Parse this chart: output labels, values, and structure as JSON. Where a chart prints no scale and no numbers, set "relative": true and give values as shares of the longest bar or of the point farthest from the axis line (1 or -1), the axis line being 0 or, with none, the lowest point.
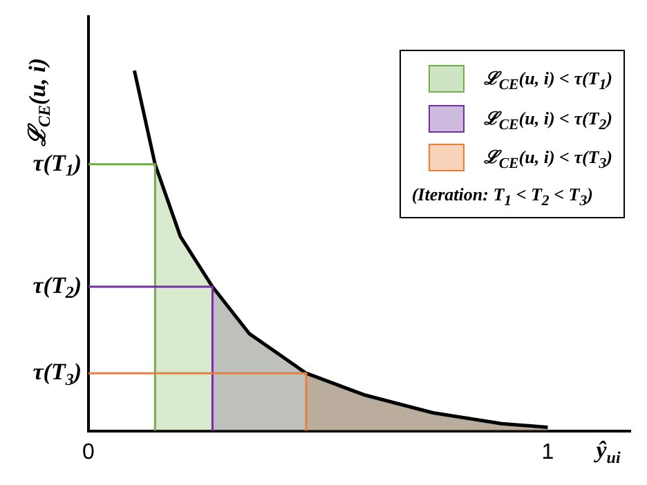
{
  "chart_data": {
    "type": "line",
    "relative": true,
    "xlabel": "ŷ$_{ui}$",
    "ylabel": "ℒ$_{CE}$(u, i)",
    "xlim": [
      0,
      1.18
    ],
    "xticks": [
      0,
      1
    ],
    "legend": "top right",
    "grid": false,
    "series": [
      {
        "type": "line",
        "color": "#000000",
        "x": [
          0.1,
          0.145,
          0.2,
          0.27,
          0.35,
          0.474,
          0.6,
          0.75,
          0.9,
          1.0
        ],
        "values": [
          1.0,
          0.74,
          0.54,
          0.4,
          0.27,
          0.16,
          0.1,
          0.05,
          0.02,
          0.01
        ]
      },
      {
        "type": "area",
        "name": "ℒ$_{CE}$(u, i) < τ(T$_{1}$)",
        "color": "#70ad47",
        "x": [
          0.145,
          0.2,
          0.27,
          0.35,
          0.474,
          0.6,
          0.75,
          0.9,
          1.0
        ],
        "values": [
          0.74,
          0.54,
          0.4,
          0.27,
          0.16,
          0.1,
          0.05,
          0.02,
          0.01
        ]
      },
      {
        "type": "area",
        "name": "ℒ$_{CE}$(u, i) < τ(T$_{2}$)",
        "color": "#7030a0",
        "x": [
          0.27,
          0.35,
          0.474,
          0.6,
          0.75,
          0.9,
          1.0
        ],
        "values": [
          0.4,
          0.27,
          0.16,
          0.1,
          0.05,
          0.02,
          0.01
        ]
      },
      {
        "type": "area",
        "name": "ℒ$_{CE}$(u, i) < τ(T$_{3}$)",
        "color": "#ed7d31",
        "x": [
          0.474,
          0.6,
          0.75,
          0.9,
          1.0
        ],
        "values": [
          0.16,
          0.1,
          0.05,
          0.02,
          0.01
        ]
      }
    ],
    "ref_lines": [
      {
        "axis": "y",
        "value": 0.74,
        "label": "τ(T$_{1}$)",
        "color": "#70ad47"
      },
      {
        "axis": "y",
        "value": 0.4,
        "label": "τ(T$_{2}$)",
        "color": "#7030a0"
      },
      {
        "axis": "y",
        "value": 0.16,
        "label": "τ(T$_{3}$)",
        "color": "#ed7d31"
      }
    ],
    "annotations": [
      "(Iteration: T$_{1}$ < T$_{2}$ < T$_{3}$)"
    ]
  }
}
